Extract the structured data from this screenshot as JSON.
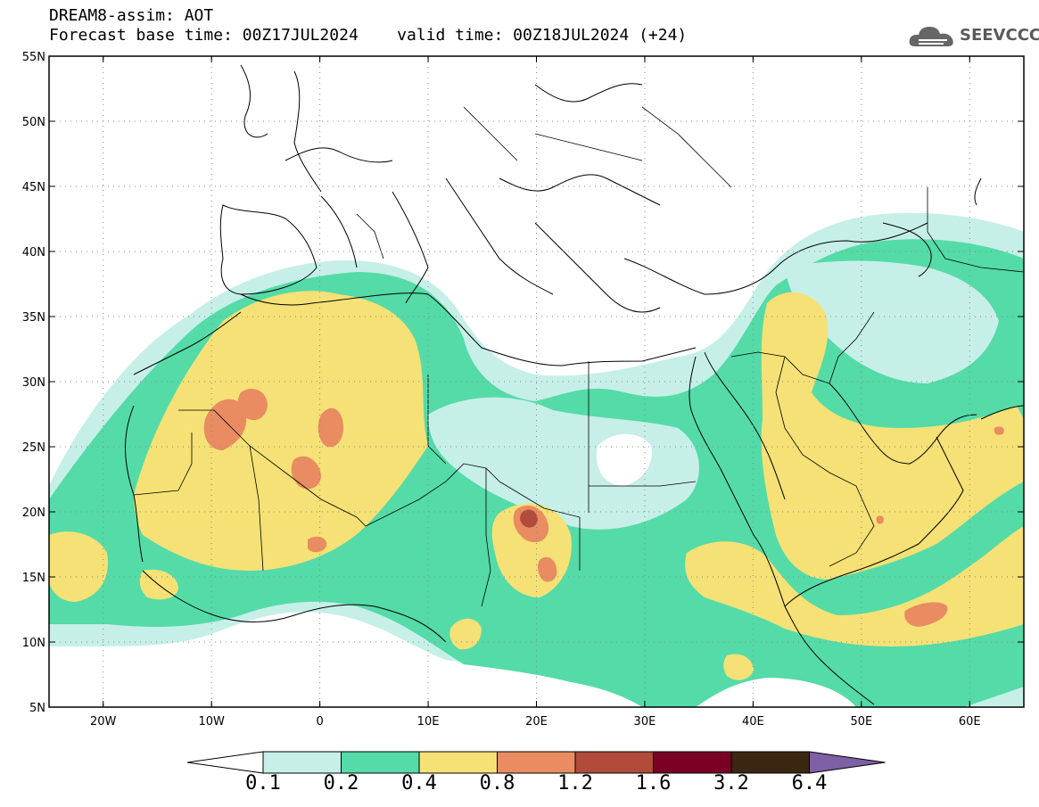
{
  "header": {
    "title": "DREAM8-assim: AOT",
    "base_time": "Forecast base time: 00Z17JUL2024",
    "valid_time": "valid time: 00Z18JUL2024 (+24)"
  },
  "logo": {
    "text": "SEEVCCC",
    "icon": "cloud-logo-icon"
  },
  "map": {
    "lat_labels": [
      "55N",
      "50N",
      "45N",
      "40N",
      "35N",
      "30N",
      "25N",
      "20N",
      "15N",
      "10N",
      "5N"
    ],
    "lon_labels": [
      "20W",
      "10W",
      "0",
      "10E",
      "20E",
      "30E",
      "40E",
      "50E",
      "60E"
    ],
    "lon_range": [
      -25,
      65
    ],
    "lat_range": [
      5,
      55
    ],
    "graticule": "dotted"
  },
  "colorbar": {
    "levels": [
      "0.1",
      "0.2",
      "0.4",
      "0.8",
      "1.2",
      "1.6",
      "3.2",
      "6.4"
    ],
    "colors": [
      "#ffffff",
      "#c6efe8",
      "#54dba8",
      "#f5e175",
      "#e98c62",
      "#b24b3c",
      "#7a0026",
      "#3b2612",
      "#7f5fa5"
    ]
  },
  "colors": {
    "bin_0_1": "#c6efe8",
    "bin_0_2": "#54dba8",
    "bin_0_4": "#f5e175",
    "bin_0_8": "#e98c62",
    "bin_1_2": "#b24b3c"
  }
}
